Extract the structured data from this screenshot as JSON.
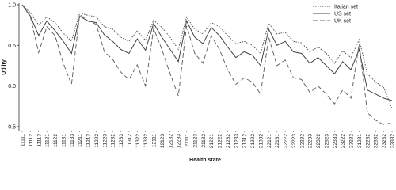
{
  "chart_data": {
    "type": "line",
    "x_label": "Health state",
    "y_label": "Utility",
    "categories": [
      "11111",
      "11112",
      "11113",
      "11121",
      "11122",
      "11131",
      "11133",
      "11211",
      "11213",
      "11222",
      "11223",
      "11232",
      "11233",
      "11312",
      "11322",
      "11332",
      "12111",
      "12123",
      "12132",
      "12233",
      "21111",
      "21123",
      "21132",
      "21221",
      "21222",
      "21232",
      "21233",
      "21312",
      "21322",
      "21332",
      "22121",
      "22131",
      "22222",
      "22223",
      "22232",
      "22233",
      "22322",
      "22323",
      "22333",
      "23222",
      "23232",
      "31231",
      "32232",
      "32332",
      "33232",
      "33332"
    ],
    "series": [
      {
        "name": "Italian set",
        "color": "#555555",
        "dash": "1.5,1.5",
        "values": [
          1.0,
          0.9,
          0.75,
          0.85,
          0.78,
          0.65,
          0.55,
          0.9,
          0.87,
          0.85,
          0.73,
          0.7,
          0.6,
          0.55,
          0.68,
          0.56,
          0.81,
          0.72,
          0.6,
          0.45,
          0.85,
          0.7,
          0.64,
          0.78,
          0.73,
          0.62,
          0.52,
          0.55,
          0.5,
          0.4,
          0.77,
          0.64,
          0.66,
          0.55,
          0.53,
          0.42,
          0.48,
          0.4,
          0.28,
          0.43,
          0.35,
          0.57,
          0.15,
          0.05,
          -0.02,
          -0.28
        ]
      },
      {
        "name": "US set",
        "color": "#444444",
        "dash": "none",
        "values": [
          1.0,
          0.86,
          0.62,
          0.8,
          0.68,
          0.55,
          0.4,
          0.86,
          0.8,
          0.78,
          0.63,
          0.55,
          0.45,
          0.4,
          0.58,
          0.44,
          0.77,
          0.6,
          0.45,
          0.3,
          0.8,
          0.6,
          0.52,
          0.72,
          0.62,
          0.48,
          0.35,
          0.42,
          0.38,
          0.25,
          0.7,
          0.5,
          0.55,
          0.42,
          0.4,
          0.28,
          0.35,
          0.25,
          0.15,
          0.3,
          0.2,
          0.45,
          -0.05,
          -0.1,
          -0.15,
          -0.18
        ]
      },
      {
        "name": "UK set",
        "color": "#666666",
        "dash": "6,3",
        "values": [
          1.0,
          0.85,
          0.41,
          0.73,
          0.62,
          0.28,
          0.02,
          0.88,
          0.8,
          0.76,
          0.42,
          0.33,
          0.17,
          0.08,
          0.26,
          0.0,
          0.71,
          0.45,
          0.15,
          -0.12,
          0.74,
          0.4,
          0.28,
          0.62,
          0.45,
          0.2,
          0.02,
          0.1,
          0.05,
          -0.1,
          0.6,
          0.25,
          0.32,
          0.1,
          0.08,
          -0.08,
          0.0,
          -0.1,
          -0.22,
          -0.05,
          -0.15,
          0.52,
          -0.33,
          -0.42,
          -0.48,
          -0.45
        ]
      }
    ],
    "ylim": [
      -0.55,
      1.0
    ],
    "yticks": [
      {
        "value": 1.0,
        "label": "1.0"
      },
      {
        "value": 0.5,
        "label": "0.5"
      },
      {
        "value": 0.0,
        "label": "0.0"
      },
      -0.5
    ],
    "legend": "upper right"
  }
}
